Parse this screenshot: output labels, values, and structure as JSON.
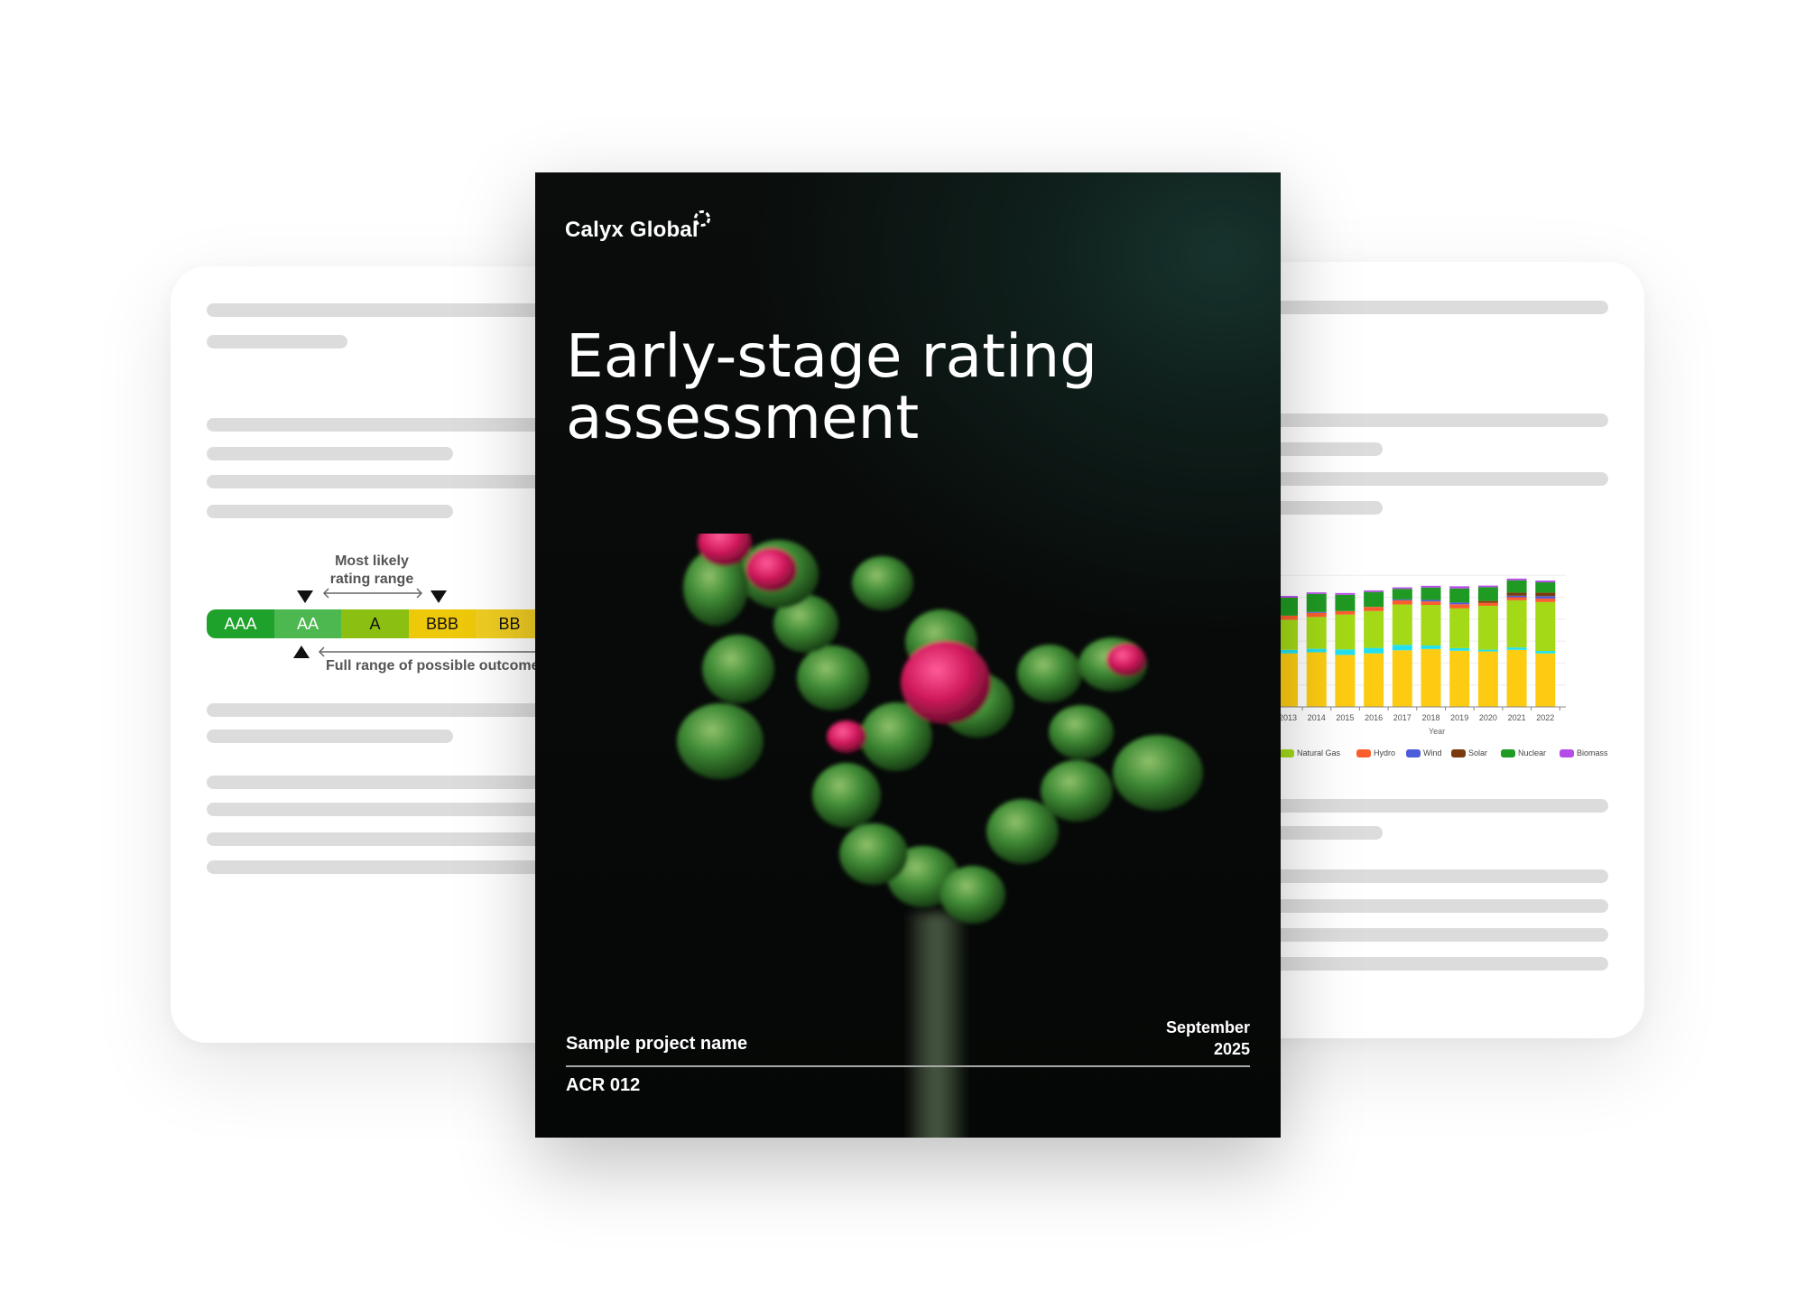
{
  "cover": {
    "brand": "Calyx Global",
    "title_line1": "Early-stage rating",
    "title_line2": "assessment",
    "project_name": "Sample project name",
    "date_month": "September",
    "date_year": "2025",
    "project_code": "ACR 012",
    "background_color": "#0a0d0c"
  },
  "rating_scale": {
    "segments": [
      {
        "label": "AAA",
        "color": "#1fa22b",
        "text_color": "#ffffff"
      },
      {
        "label": "AA",
        "color": "#4cb84f",
        "text_color": "#ffffff"
      },
      {
        "label": "A",
        "color": "#8bbf12",
        "text_color": "#111111"
      },
      {
        "label": "BBB",
        "color": "#eec90a",
        "text_color": "#111111"
      },
      {
        "label": "BB",
        "color": "#f0cd22",
        "text_color": "#111111"
      }
    ],
    "most_likely_line1": "Most likely",
    "most_likely_line2": "rating range",
    "full_range_label": "Full range of possible outcomes"
  },
  "chart_data": {
    "type": "bar",
    "stacked": true,
    "xlabel": "Year",
    "categories": [
      "2013",
      "2014",
      "2015",
      "2016",
      "2017",
      "2018",
      "2019",
      "2020",
      "2021",
      "2022"
    ],
    "grid": true,
    "legend_position": "bottom",
    "series": [
      {
        "color": "#fdcc12",
        "values": [
          24.4,
          24.9,
          23.7,
          24.4,
          25.8,
          26.4,
          25.6,
          25.3,
          26.0,
          24.4
        ]
      },
      {
        "color": "#22e0f0",
        "values": [
          1.6,
          1.6,
          2.5,
          2.5,
          2.5,
          1.6,
          1.2,
          0.8,
          1.1,
          1.1
        ]
      },
      {
        "name": "Natural Gas",
        "color": "#a3d916",
        "values": [
          13.7,
          14.5,
          15.9,
          16.8,
          18.4,
          18.5,
          18.1,
          20.0,
          21.5,
          22.3
        ]
      },
      {
        "name": "Hydro",
        "color": "#fb5e2e",
        "values": [
          1.9,
          1.9,
          1.6,
          1.9,
          1.9,
          1.6,
          1.9,
          1.4,
          1.4,
          1.6
        ]
      },
      {
        "name": "Wind",
        "color": "#4c5bd9",
        "values": [
          0,
          0.4,
          0,
          0,
          0.4,
          0.7,
          0.8,
          0,
          0.7,
          1.1
        ]
      },
      {
        "name": "Solar",
        "color": "#7a3a0e",
        "values": [
          0,
          0,
          0,
          0,
          0,
          0,
          0,
          0.8,
          1.4,
          1.6
        ]
      },
      {
        "name": "Nuclear",
        "color": "#1f9a22",
        "values": [
          8.2,
          8.2,
          7.4,
          6.8,
          4.8,
          5.6,
          6.4,
          6.3,
          5.6,
          4.7
        ]
      },
      {
        "name": "Biomass",
        "color": "#b54de8",
        "values": [
          0.8,
          0.7,
          0.8,
          0.7,
          0.7,
          0.8,
          1.0,
          0.7,
          0.8,
          0.8
        ]
      }
    ]
  }
}
